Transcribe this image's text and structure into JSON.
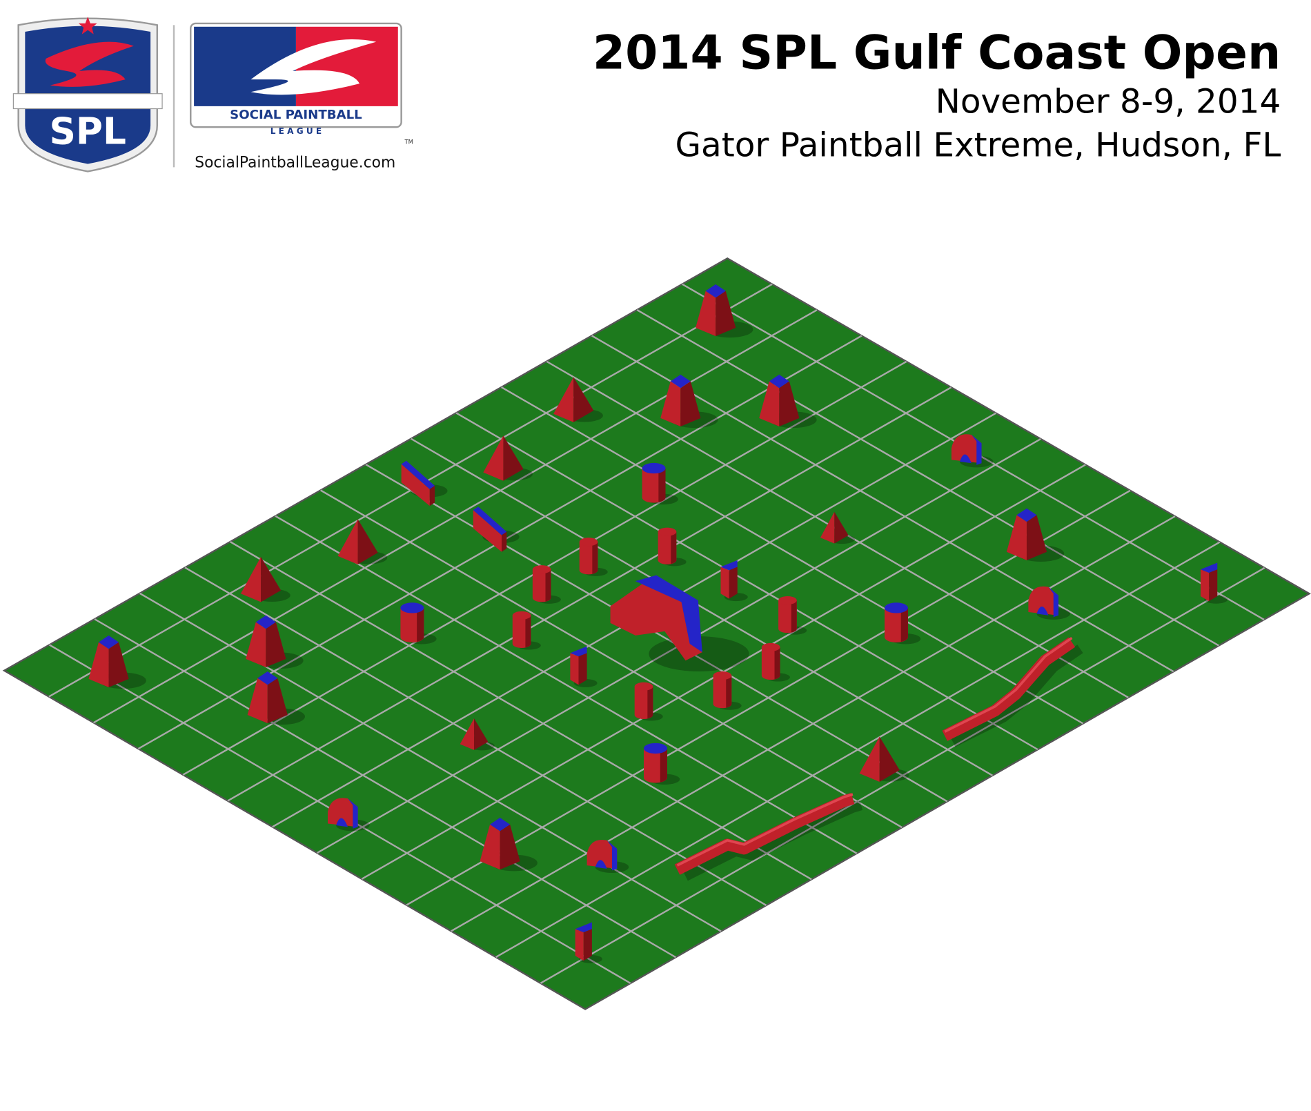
{
  "header": {
    "title": "2014 SPL Gulf Coast Open",
    "date": "November 8-9, 2014",
    "location": "Gator Paintball Extreme, Hudson, FL"
  },
  "logo": {
    "badge": "SPL",
    "name": "SOCIAL PAINTBALL",
    "league": "L E A G U E",
    "trademark": "TM",
    "website": "SocialPaintballLeague.com"
  }
}
